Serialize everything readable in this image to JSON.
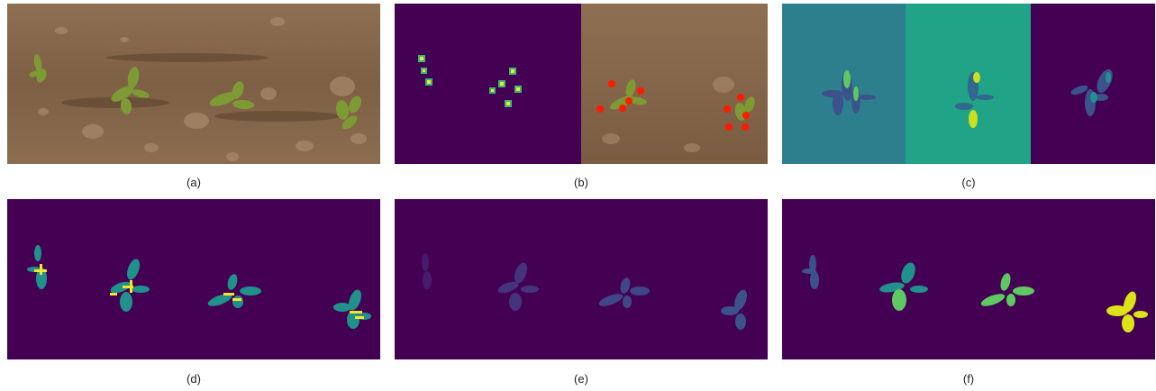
{
  "figure": {
    "captions": [
      "(a)",
      "(b)",
      "(c)",
      "(d)",
      "(e)",
      "(f)"
    ]
  },
  "colors": {
    "background_purple": "#440154",
    "soil": "#8a6a4c",
    "plant_green": "#6f8a2e",
    "teal": "#2a9a8c",
    "yellow": "#f5e62a",
    "keypoint_red": "#ff1a00",
    "offset_teal_left": "#2d7f8e",
    "offset_teal_right": "#20a386"
  }
}
